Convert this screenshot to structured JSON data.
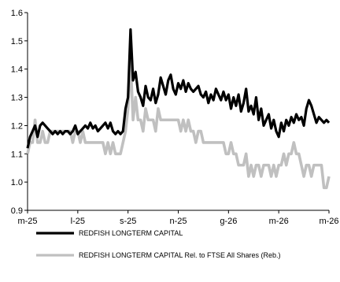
{
  "chart_data": {
    "type": "line",
    "title": "",
    "xlabel": "",
    "ylabel": "",
    "ylim": [
      0.9,
      1.6
    ],
    "yticks": [
      "0.9",
      "1.0",
      "1.1",
      "1.2",
      "1.3",
      "1.4",
      "1.5",
      "1.6"
    ],
    "xticks": [
      "m-25",
      "l-25",
      "s-25",
      "n-25",
      "g-26",
      "m-26",
      "m-26"
    ],
    "grid": false,
    "legend_position": "bottom",
    "series": [
      {
        "name": "REDFISH LONGTERM CAPITAL",
        "color": "#000000",
        "x": [
          0,
          1,
          2,
          3,
          4,
          5,
          6,
          7,
          8,
          9,
          10,
          11,
          12,
          13,
          14,
          15,
          16,
          17,
          18,
          19,
          20,
          21,
          22,
          23,
          24,
          25,
          26,
          27,
          28,
          29,
          30,
          31,
          32,
          33,
          34,
          35,
          36,
          37,
          38,
          39,
          40,
          41,
          42,
          43,
          44,
          45,
          46,
          47,
          48,
          49,
          50,
          51,
          52,
          53,
          54,
          55,
          56,
          57,
          58,
          59,
          60,
          61,
          62,
          63,
          64,
          65,
          66,
          67,
          68,
          69,
          70,
          71,
          72,
          73,
          74,
          75,
          76,
          77,
          78,
          79,
          80,
          81,
          82,
          83,
          84,
          85,
          86,
          87,
          88,
          89,
          90,
          91,
          92,
          93,
          94,
          95,
          96,
          97,
          98,
          99,
          100,
          101,
          102,
          103,
          104,
          105,
          106,
          107,
          108,
          109,
          110,
          111,
          112,
          113,
          114,
          115,
          116,
          117,
          118,
          119,
          120
        ],
        "values": [
          1.12,
          1.16,
          1.18,
          1.2,
          1.16,
          1.2,
          1.21,
          1.2,
          1.19,
          1.18,
          1.17,
          1.18,
          1.17,
          1.18,
          1.17,
          1.18,
          1.18,
          1.17,
          1.18,
          1.2,
          1.17,
          1.18,
          1.19,
          1.2,
          1.19,
          1.21,
          1.19,
          1.2,
          1.18,
          1.19,
          1.2,
          1.21,
          1.19,
          1.21,
          1.18,
          1.17,
          1.18,
          1.17,
          1.18,
          1.26,
          1.3,
          1.54,
          1.36,
          1.39,
          1.32,
          1.3,
          1.27,
          1.34,
          1.3,
          1.29,
          1.33,
          1.28,
          1.31,
          1.37,
          1.34,
          1.31,
          1.36,
          1.38,
          1.33,
          1.31,
          1.35,
          1.33,
          1.36,
          1.32,
          1.35,
          1.33,
          1.32,
          1.33,
          1.34,
          1.31,
          1.3,
          1.32,
          1.28,
          1.31,
          1.29,
          1.33,
          1.31,
          1.29,
          1.32,
          1.29,
          1.31,
          1.26,
          1.3,
          1.27,
          1.31,
          1.25,
          1.28,
          1.33,
          1.25,
          1.27,
          1.24,
          1.3,
          1.22,
          1.26,
          1.2,
          1.22,
          1.24,
          1.19,
          1.22,
          1.18,
          1.16,
          1.21,
          1.18,
          1.22,
          1.2,
          1.23,
          1.21,
          1.24,
          1.22,
          1.23,
          1.2,
          1.26,
          1.29,
          1.27,
          1.24,
          1.21,
          1.23,
          1.22,
          1.21,
          1.22,
          1.21
        ]
      },
      {
        "name": "REDFISH LONGTERM CAPITAL Rel. to FTSE All Shares (Reb.)",
        "color": "#c0c0c0",
        "x": [
          0,
          1,
          2,
          3,
          4,
          5,
          6,
          7,
          8,
          9,
          10,
          11,
          12,
          13,
          14,
          15,
          16,
          17,
          18,
          19,
          20,
          21,
          22,
          23,
          24,
          25,
          26,
          27,
          28,
          29,
          30,
          31,
          32,
          33,
          34,
          35,
          36,
          37,
          38,
          39,
          40,
          41,
          42,
          43,
          44,
          45,
          46,
          47,
          48,
          49,
          50,
          51,
          52,
          53,
          54,
          55,
          56,
          57,
          58,
          59,
          60,
          61,
          62,
          63,
          64,
          65,
          66,
          67,
          68,
          69,
          70,
          71,
          72,
          73,
          74,
          75,
          76,
          77,
          78,
          79,
          80,
          81,
          82,
          83,
          84,
          85,
          86,
          87,
          88,
          89,
          90,
          91,
          92,
          93,
          94,
          95,
          96,
          97,
          98,
          99,
          100,
          101,
          102,
          103,
          104,
          105,
          106,
          107,
          108,
          109,
          110,
          111,
          112,
          113,
          114,
          115,
          116,
          117,
          118,
          119,
          120
        ],
        "values": [
          1.1,
          1.14,
          1.14,
          1.22,
          1.14,
          1.14,
          1.18,
          1.14,
          1.14,
          1.18,
          1.18,
          1.18,
          1.18,
          1.18,
          1.18,
          1.18,
          1.18,
          1.18,
          1.14,
          1.18,
          1.18,
          1.14,
          1.18,
          1.14,
          1.14,
          1.14,
          1.14,
          1.14,
          1.14,
          1.14,
          1.14,
          1.1,
          1.14,
          1.1,
          1.14,
          1.1,
          1.1,
          1.1,
          1.14,
          1.18,
          1.26,
          1.43,
          1.22,
          1.3,
          1.22,
          1.22,
          1.18,
          1.26,
          1.22,
          1.22,
          1.22,
          1.18,
          1.26,
          1.22,
          1.22,
          1.22,
          1.22,
          1.22,
          1.22,
          1.22,
          1.22,
          1.18,
          1.22,
          1.18,
          1.22,
          1.18,
          1.18,
          1.14,
          1.18,
          1.18,
          1.14,
          1.14,
          1.14,
          1.14,
          1.14,
          1.14,
          1.14,
          1.14,
          1.14,
          1.1,
          1.1,
          1.14,
          1.1,
          1.1,
          1.06,
          1.06,
          1.06,
          1.1,
          1.02,
          1.06,
          1.02,
          1.06,
          1.06,
          1.02,
          1.06,
          1.06,
          1.06,
          1.02,
          1.06,
          1.02,
          1.06,
          1.06,
          1.1,
          1.06,
          1.1,
          1.1,
          1.14,
          1.1,
          1.1,
          1.06,
          1.02,
          1.06,
          1.06,
          1.02,
          1.06,
          1.06,
          1.06,
          1.06,
          0.98,
          0.98,
          1.02
        ]
      }
    ]
  }
}
